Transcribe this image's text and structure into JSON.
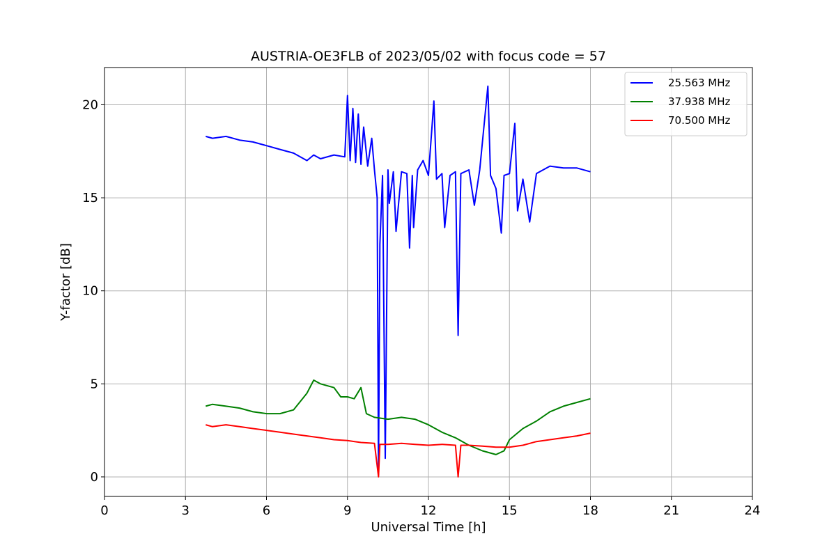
{
  "chart_data": {
    "type": "line",
    "title": "AUSTRIA-OE3FLB of 2023/05/02 with focus code = 57",
    "xlabel": "Universal Time [h]",
    "ylabel": "Y-factor [dB]",
    "xlim": [
      0,
      24
    ],
    "ylim": [
      -1.05,
      22
    ],
    "xticks": [
      0,
      3,
      6,
      9,
      12,
      15,
      18,
      21,
      24
    ],
    "yticks": [
      0,
      5,
      10,
      15,
      20
    ],
    "grid": true,
    "legend_position": "top-right",
    "series": [
      {
        "name": "25.563 MHz",
        "color": "#0000ff",
        "points": [
          [
            3.75,
            18.3
          ],
          [
            4.0,
            18.2
          ],
          [
            4.5,
            18.3
          ],
          [
            5.0,
            18.1
          ],
          [
            5.5,
            18.0
          ],
          [
            6.0,
            17.8
          ],
          [
            6.5,
            17.6
          ],
          [
            7.0,
            17.4
          ],
          [
            7.5,
            17.0
          ],
          [
            7.75,
            17.3
          ],
          [
            8.0,
            17.1
          ],
          [
            8.5,
            17.3
          ],
          [
            8.9,
            17.2
          ],
          [
            9.0,
            20.5
          ],
          [
            9.1,
            17.0
          ],
          [
            9.2,
            19.8
          ],
          [
            9.3,
            16.9
          ],
          [
            9.4,
            19.5
          ],
          [
            9.5,
            16.8
          ],
          [
            9.6,
            18.8
          ],
          [
            9.75,
            16.7
          ],
          [
            9.9,
            18.2
          ],
          [
            10.0,
            16.5
          ],
          [
            10.1,
            15.0
          ],
          [
            10.15,
            0.1
          ],
          [
            10.2,
            12.5
          ],
          [
            10.3,
            16.2
          ],
          [
            10.4,
            1.0
          ],
          [
            10.5,
            16.5
          ],
          [
            10.55,
            14.7
          ],
          [
            10.7,
            16.4
          ],
          [
            10.8,
            13.2
          ],
          [
            11.0,
            16.4
          ],
          [
            11.2,
            16.3
          ],
          [
            11.3,
            12.3
          ],
          [
            11.4,
            16.2
          ],
          [
            11.45,
            13.4
          ],
          [
            11.6,
            16.5
          ],
          [
            11.8,
            17.0
          ],
          [
            12.0,
            16.2
          ],
          [
            12.2,
            20.2
          ],
          [
            12.3,
            16.0
          ],
          [
            12.5,
            16.3
          ],
          [
            12.6,
            13.4
          ],
          [
            12.8,
            16.2
          ],
          [
            13.0,
            16.4
          ],
          [
            13.1,
            7.6
          ],
          [
            13.2,
            16.3
          ],
          [
            13.5,
            16.5
          ],
          [
            13.7,
            14.6
          ],
          [
            13.9,
            16.5
          ],
          [
            14.1,
            19.5
          ],
          [
            14.2,
            21.0
          ],
          [
            14.3,
            16.2
          ],
          [
            14.5,
            15.5
          ],
          [
            14.7,
            13.1
          ],
          [
            14.8,
            16.2
          ],
          [
            15.0,
            16.3
          ],
          [
            15.2,
            19.0
          ],
          [
            15.3,
            14.3
          ],
          [
            15.5,
            16.0
          ],
          [
            15.75,
            13.7
          ],
          [
            16.0,
            16.3
          ],
          [
            16.5,
            16.7
          ],
          [
            17.0,
            16.6
          ],
          [
            17.5,
            16.6
          ],
          [
            18.0,
            16.4
          ]
        ]
      },
      {
        "name": "37.938 MHz",
        "color": "#008000",
        "points": [
          [
            3.75,
            3.8
          ],
          [
            4.0,
            3.9
          ],
          [
            4.5,
            3.8
          ],
          [
            5.0,
            3.7
          ],
          [
            5.5,
            3.5
          ],
          [
            6.0,
            3.4
          ],
          [
            6.5,
            3.4
          ],
          [
            7.0,
            3.6
          ],
          [
            7.5,
            4.5
          ],
          [
            7.75,
            5.2
          ],
          [
            8.0,
            5.0
          ],
          [
            8.5,
            4.8
          ],
          [
            8.75,
            4.3
          ],
          [
            9.0,
            4.3
          ],
          [
            9.25,
            4.2
          ],
          [
            9.5,
            4.8
          ],
          [
            9.7,
            3.4
          ],
          [
            10.0,
            3.2
          ],
          [
            10.5,
            3.1
          ],
          [
            11.0,
            3.2
          ],
          [
            11.5,
            3.1
          ],
          [
            12.0,
            2.8
          ],
          [
            12.5,
            2.4
          ],
          [
            13.0,
            2.1
          ],
          [
            13.5,
            1.7
          ],
          [
            14.0,
            1.4
          ],
          [
            14.5,
            1.2
          ],
          [
            14.8,
            1.4
          ],
          [
            15.0,
            2.0
          ],
          [
            15.5,
            2.6
          ],
          [
            16.0,
            3.0
          ],
          [
            16.5,
            3.5
          ],
          [
            17.0,
            3.8
          ],
          [
            17.5,
            4.0
          ],
          [
            18.0,
            4.2
          ]
        ]
      },
      {
        "name": "70.500 MHz",
        "color": "#ff0000",
        "points": [
          [
            3.75,
            2.8
          ],
          [
            4.0,
            2.7
          ],
          [
            4.5,
            2.8
          ],
          [
            5.0,
            2.7
          ],
          [
            5.5,
            2.6
          ],
          [
            6.0,
            2.5
          ],
          [
            6.5,
            2.4
          ],
          [
            7.0,
            2.3
          ],
          [
            7.5,
            2.2
          ],
          [
            8.0,
            2.1
          ],
          [
            8.5,
            2.0
          ],
          [
            9.0,
            1.95
          ],
          [
            9.5,
            1.85
          ],
          [
            10.0,
            1.8
          ],
          [
            10.15,
            0.0
          ],
          [
            10.2,
            1.75
          ],
          [
            10.5,
            1.75
          ],
          [
            11.0,
            1.8
          ],
          [
            11.5,
            1.75
          ],
          [
            12.0,
            1.7
          ],
          [
            12.5,
            1.75
          ],
          [
            13.0,
            1.7
          ],
          [
            13.1,
            0.0
          ],
          [
            13.2,
            1.7
          ],
          [
            13.5,
            1.7
          ],
          [
            14.0,
            1.65
          ],
          [
            14.5,
            1.6
          ],
          [
            15.0,
            1.6
          ],
          [
            15.5,
            1.7
          ],
          [
            16.0,
            1.9
          ],
          [
            16.5,
            2.0
          ],
          [
            17.0,
            2.1
          ],
          [
            17.5,
            2.2
          ],
          [
            18.0,
            2.35
          ]
        ]
      }
    ]
  }
}
